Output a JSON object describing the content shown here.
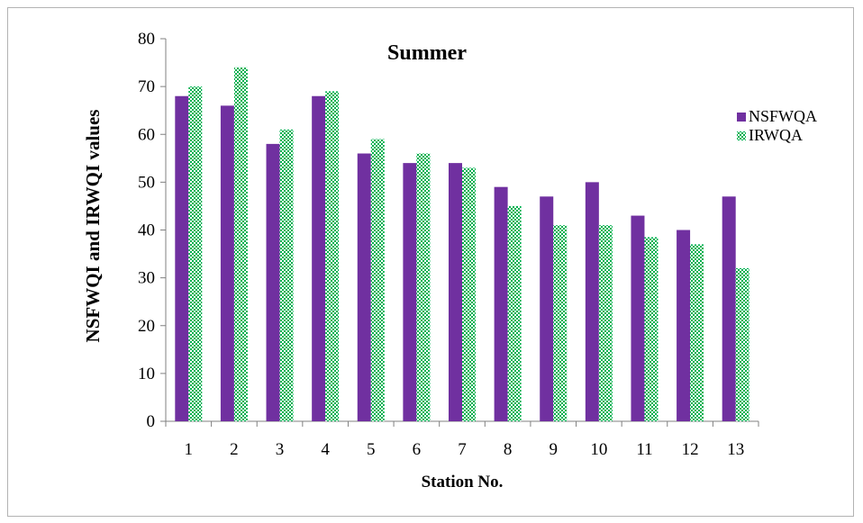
{
  "chart_data": {
    "type": "bar",
    "title": "Summer",
    "xlabel": "Station No.",
    "ylabel": "NSFWQI and IRWQI values",
    "categories": [
      "1",
      "2",
      "3",
      "4",
      "5",
      "6",
      "7",
      "8",
      "9",
      "10",
      "11",
      "12",
      "13"
    ],
    "ylim": [
      0,
      80
    ],
    "yticks": [
      "0",
      "10",
      "20",
      "30",
      "40",
      "50",
      "60",
      "70",
      "80"
    ],
    "grid": false,
    "legend_position": "right",
    "series": [
      {
        "name": "NSFWQA",
        "color": "#7030a0",
        "pattern": "solid",
        "values": [
          68,
          66,
          58,
          68,
          56,
          54,
          54,
          49,
          47,
          50,
          43,
          40,
          47
        ]
      },
      {
        "name": "IRWQA",
        "color": "#00b050",
        "pattern": "checkered",
        "values": [
          70,
          74,
          61,
          69,
          59,
          56,
          53,
          45,
          41,
          41,
          38.5,
          37,
          32
        ]
      }
    ]
  }
}
